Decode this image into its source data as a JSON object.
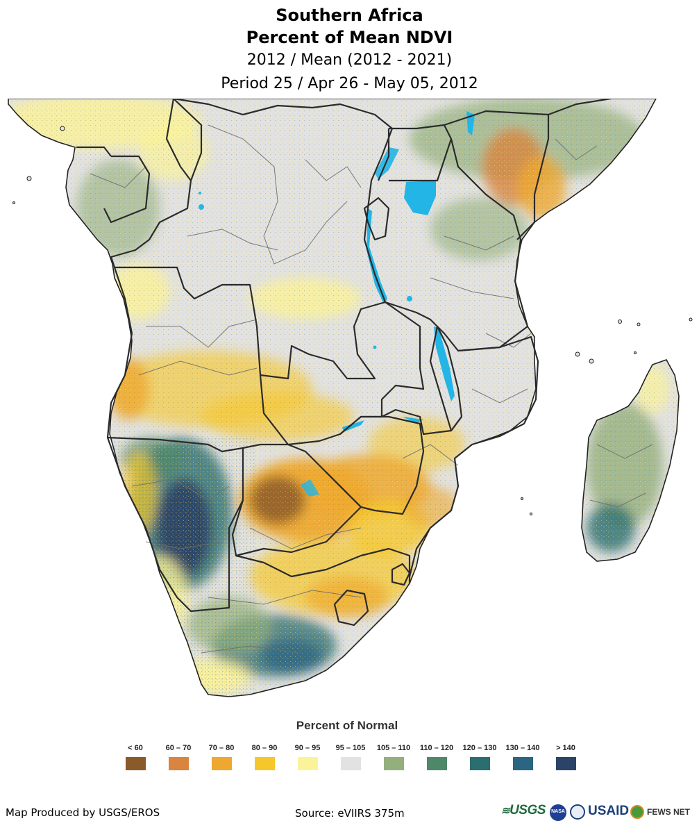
{
  "header": {
    "title_line1": "Southern Africa",
    "title_line2": "Percent of Mean NDVI",
    "subtitle_line1": "2012 / Mean (2012 - 2021)",
    "subtitle_line2": "Period 25 / Apr 26 - May 05, 2012"
  },
  "legend": {
    "title": "Percent of Normal",
    "classes": [
      {
        "label": "< 60",
        "color": "#8B5A2B"
      },
      {
        "label": "60 – 70",
        "color": "#D9843F"
      },
      {
        "label": "70 – 80",
        "color": "#EEA82F"
      },
      {
        "label": "80 – 90",
        "color": "#F6C72A"
      },
      {
        "label": "90 – 95",
        "color": "#FBF39A"
      },
      {
        "label": "95 – 105",
        "color": "#E2E2E2"
      },
      {
        "label": "105 – 110",
        "color": "#93AF7E"
      },
      {
        "label": "110 – 120",
        "color": "#4F8769"
      },
      {
        "label": "120 – 130",
        "color": "#2B6E6F"
      },
      {
        "label": "130 – 140",
        "color": "#2A6582"
      },
      {
        "label": "> 140",
        "color": "#2C4368"
      }
    ]
  },
  "footer": {
    "produced_by": "Map Produced by USGS/EROS",
    "source": "Source: eVIIRS 375m"
  },
  "logos": {
    "usgs": "USGS",
    "nasa": "NASA",
    "usaid": "USAID",
    "fewsnet": "FEWS NET"
  },
  "colors": {
    "water": "#22B5E6",
    "border": "#2B2B2B",
    "admin": "#6E6E6E"
  }
}
